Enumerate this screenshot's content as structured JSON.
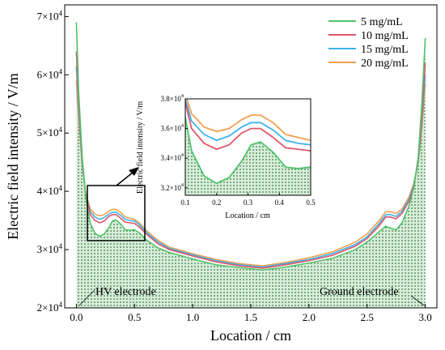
{
  "chart_data": {
    "type": "line",
    "xlabel": "Location / cm",
    "ylabel": "Electric field intensity / V/m",
    "xlim": [
      -0.1,
      3.1
    ],
    "ylim": [
      20000,
      72000
    ],
    "x_ticks": [
      "0.0",
      "0.5",
      "1.0",
      "1.5",
      "2.0",
      "2.5",
      "3.0"
    ],
    "y_ticks": [
      {
        "value": 20000,
        "mantissa": "2",
        "exp": "4"
      },
      {
        "value": 30000,
        "mantissa": "3",
        "exp": "4"
      },
      {
        "value": 40000,
        "mantissa": "4",
        "exp": "4"
      },
      {
        "value": 50000,
        "mantissa": "5",
        "exp": "4"
      },
      {
        "value": 60000,
        "mantissa": "6",
        "exp": "4"
      },
      {
        "value": 70000,
        "mantissa": "7",
        "exp": "4"
      }
    ],
    "legend_position": "top-right",
    "series": [
      {
        "name": "5 mg/mL",
        "color": "#4fc36a",
        "points": [
          [
            0.0,
            69000
          ],
          [
            0.02,
            57000
          ],
          [
            0.05,
            46000
          ],
          [
            0.08,
            39000
          ],
          [
            0.12,
            34500
          ],
          [
            0.16,
            32800
          ],
          [
            0.2,
            32300
          ],
          [
            0.24,
            32700
          ],
          [
            0.28,
            33800
          ],
          [
            0.31,
            34900
          ],
          [
            0.34,
            35100
          ],
          [
            0.38,
            34400
          ],
          [
            0.42,
            33400
          ],
          [
            0.46,
            33300
          ],
          [
            0.5,
            33400
          ],
          [
            0.54,
            32900
          ],
          [
            0.6,
            31700
          ],
          [
            0.7,
            30300
          ],
          [
            0.8,
            29500
          ],
          [
            1.0,
            28400
          ],
          [
            1.2,
            27400
          ],
          [
            1.4,
            26900
          ],
          [
            1.6,
            26500
          ],
          [
            1.8,
            27000
          ],
          [
            2.0,
            27700
          ],
          [
            2.2,
            28500
          ],
          [
            2.4,
            30000
          ],
          [
            2.5,
            31300
          ],
          [
            2.6,
            33000
          ],
          [
            2.66,
            34000
          ],
          [
            2.7,
            33700
          ],
          [
            2.75,
            33400
          ],
          [
            2.8,
            34600
          ],
          [
            2.86,
            37500
          ],
          [
            2.9,
            40500
          ],
          [
            2.94,
            46000
          ],
          [
            2.97,
            55000
          ],
          [
            3.0,
            66300
          ]
        ]
      },
      {
        "name": "10 mg/mL",
        "color": "#e0566a",
        "points": [
          [
            0.0,
            64000
          ],
          [
            0.02,
            55000
          ],
          [
            0.05,
            45500
          ],
          [
            0.08,
            39500
          ],
          [
            0.12,
            36000
          ],
          [
            0.16,
            35000
          ],
          [
            0.2,
            34600
          ],
          [
            0.24,
            34900
          ],
          [
            0.28,
            35700
          ],
          [
            0.31,
            36000
          ],
          [
            0.34,
            36000
          ],
          [
            0.38,
            35400
          ],
          [
            0.42,
            34700
          ],
          [
            0.46,
            34600
          ],
          [
            0.5,
            34500
          ],
          [
            0.54,
            33900
          ],
          [
            0.6,
            32700
          ],
          [
            0.7,
            31000
          ],
          [
            0.8,
            30000
          ],
          [
            1.0,
            28900
          ],
          [
            1.2,
            27900
          ],
          [
            1.4,
            27200
          ],
          [
            1.6,
            26800
          ],
          [
            1.8,
            27400
          ],
          [
            2.0,
            28100
          ],
          [
            2.2,
            29000
          ],
          [
            2.4,
            30600
          ],
          [
            2.5,
            31900
          ],
          [
            2.6,
            34000
          ],
          [
            2.66,
            35600
          ],
          [
            2.7,
            35600
          ],
          [
            2.75,
            35300
          ],
          [
            2.8,
            36200
          ],
          [
            2.86,
            38300
          ],
          [
            2.9,
            40800
          ],
          [
            2.94,
            45500
          ],
          [
            2.97,
            52500
          ],
          [
            3.0,
            62000
          ]
        ]
      },
      {
        "name": "15 mg/mL",
        "color": "#3db3ea",
        "points": [
          [
            0.0,
            61500
          ],
          [
            0.02,
            53500
          ],
          [
            0.05,
            45000
          ],
          [
            0.08,
            39500
          ],
          [
            0.12,
            36500
          ],
          [
            0.16,
            35600
          ],
          [
            0.2,
            35200
          ],
          [
            0.24,
            35500
          ],
          [
            0.28,
            36100
          ],
          [
            0.31,
            36400
          ],
          [
            0.34,
            36400
          ],
          [
            0.38,
            35900
          ],
          [
            0.42,
            35200
          ],
          [
            0.46,
            35000
          ],
          [
            0.5,
            34900
          ],
          [
            0.54,
            34300
          ],
          [
            0.6,
            33000
          ],
          [
            0.7,
            31300
          ],
          [
            0.8,
            30200
          ],
          [
            1.0,
            29100
          ],
          [
            1.2,
            28100
          ],
          [
            1.4,
            27400
          ],
          [
            1.6,
            27000
          ],
          [
            1.8,
            27600
          ],
          [
            2.0,
            28300
          ],
          [
            2.2,
            29300
          ],
          [
            2.4,
            30900
          ],
          [
            2.5,
            32200
          ],
          [
            2.6,
            34400
          ],
          [
            2.66,
            36000
          ],
          [
            2.7,
            36000
          ],
          [
            2.75,
            35700
          ],
          [
            2.8,
            36600
          ],
          [
            2.86,
            38700
          ],
          [
            2.9,
            41000
          ],
          [
            2.94,
            45200
          ],
          [
            2.97,
            51500
          ],
          [
            3.0,
            60000
          ]
        ]
      },
      {
        "name": "20 mg/mL",
        "color": "#f0a050",
        "points": [
          [
            0.0,
            59000
          ],
          [
            0.02,
            52000
          ],
          [
            0.05,
            44500
          ],
          [
            0.08,
            39700
          ],
          [
            0.12,
            37000
          ],
          [
            0.16,
            36100
          ],
          [
            0.2,
            35800
          ],
          [
            0.24,
            36000
          ],
          [
            0.28,
            36600
          ],
          [
            0.31,
            36900
          ],
          [
            0.34,
            36900
          ],
          [
            0.38,
            36400
          ],
          [
            0.42,
            35600
          ],
          [
            0.46,
            35400
          ],
          [
            0.5,
            35200
          ],
          [
            0.54,
            34600
          ],
          [
            0.6,
            33300
          ],
          [
            0.7,
            31600
          ],
          [
            0.8,
            30400
          ],
          [
            1.0,
            29300
          ],
          [
            1.2,
            28300
          ],
          [
            1.4,
            27600
          ],
          [
            1.6,
            27200
          ],
          [
            1.8,
            27800
          ],
          [
            2.0,
            28600
          ],
          [
            2.2,
            29600
          ],
          [
            2.4,
            31300
          ],
          [
            2.5,
            32700
          ],
          [
            2.6,
            34900
          ],
          [
            2.66,
            36500
          ],
          [
            2.7,
            36500
          ],
          [
            2.75,
            36200
          ],
          [
            2.8,
            37000
          ],
          [
            2.86,
            39000
          ],
          [
            2.9,
            41300
          ],
          [
            2.94,
            45000
          ],
          [
            2.97,
            50500
          ],
          [
            3.0,
            58500
          ]
        ]
      }
    ],
    "annotations": [
      "HV electrode",
      "Ground electrode"
    ],
    "inset": {
      "xlabel": "Location / cm",
      "ylabel": "Electric field intensity / V/m",
      "xlim": [
        0.1,
        0.5
      ],
      "ylim": [
        31500,
        38000
      ],
      "x_ticks": [
        "0.1",
        "0.2",
        "0.3",
        "0.4",
        "0.5"
      ],
      "y_ticks": [
        {
          "value": 32000,
          "mantissa": "3.2",
          "exp": "4"
        },
        {
          "value": 34000,
          "mantissa": "3.4",
          "exp": "4"
        },
        {
          "value": 36000,
          "mantissa": "3.6",
          "exp": "4"
        },
        {
          "value": 38000,
          "mantissa": "3.8",
          "exp": "4"
        }
      ]
    }
  }
}
